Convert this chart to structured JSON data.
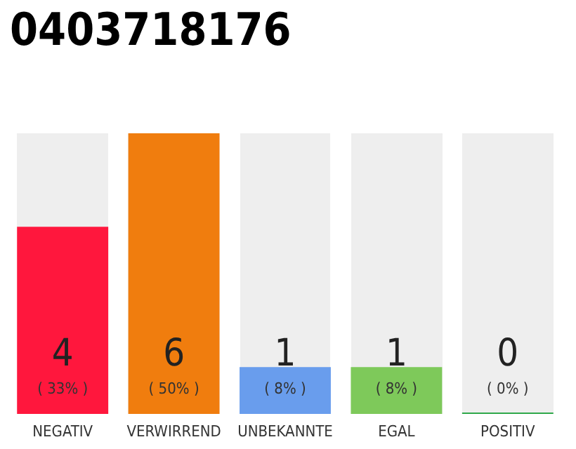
{
  "chart_data": {
    "type": "bar",
    "title": "0403718176",
    "categories": [
      "NEGATIV",
      "VERWIRREND",
      "UNBEKANNTE",
      "EGAL",
      "POSITIV"
    ],
    "values": [
      4,
      6,
      1,
      1,
      0
    ],
    "colors": [
      "#ff173d",
      "#f07d0e",
      "#699ded",
      "#7ec95a",
      "#2ea84a"
    ],
    "data_labels": true,
    "annotations": [
      "( 33% )",
      "( 50% )",
      "( 8% )",
      "( 8% )",
      "( 0% )"
    ]
  }
}
